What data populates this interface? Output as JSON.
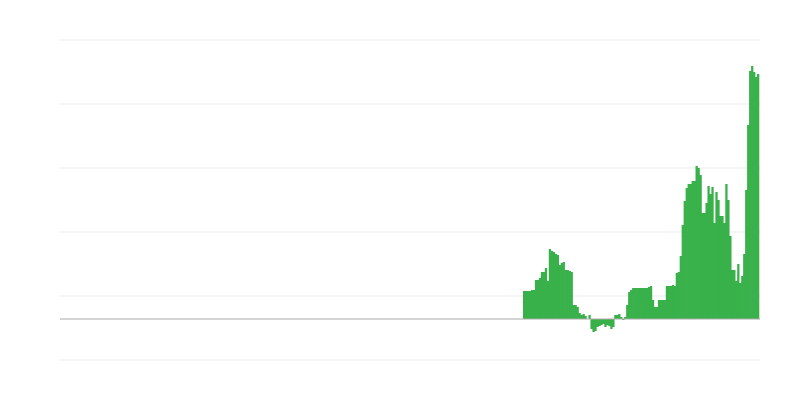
{
  "chart_data": {
    "type": "bar",
    "title": "",
    "xlabel": "",
    "ylabel": "",
    "grid": true,
    "ylim": [
      -41,
      279
    ],
    "gridlines": [
      -41,
      23,
      87,
      151,
      215,
      279
    ],
    "bar_color": "#39b14a",
    "grid_color": "#ebebeb",
    "baseline_color": "#aaaaaa",
    "leading_empty_fraction": 0.66,
    "values": [
      28,
      28,
      28,
      28,
      29,
      29,
      39,
      39,
      41,
      47,
      47,
      51,
      38,
      70,
      68,
      67,
      65,
      64,
      54,
      56,
      57,
      49,
      49,
      48,
      47,
      14,
      14,
      12,
      6,
      4,
      5,
      3,
      0,
      4,
      -10,
      -13,
      -12,
      -8,
      -7,
      -6,
      -5,
      -8,
      -6,
      -7,
      -10,
      -8,
      4,
      4,
      5,
      2,
      -1,
      2,
      14,
      27,
      29,
      31,
      31,
      31,
      31,
      31,
      31,
      31,
      31,
      32,
      33,
      19,
      12,
      12,
      19,
      19,
      19,
      19,
      33,
      33,
      33,
      34,
      33,
      46,
      47,
      63,
      94,
      118,
      131,
      135,
      135,
      138,
      138,
      153,
      151,
      144,
      106,
      106,
      116,
      133,
      125,
      132,
      96,
      127,
      119,
      103,
      103,
      96,
      135,
      119,
      83,
      49,
      49,
      38,
      55,
      36,
      43,
      65,
      129,
      194,
      248,
      253,
      247,
      242,
      245
    ]
  }
}
